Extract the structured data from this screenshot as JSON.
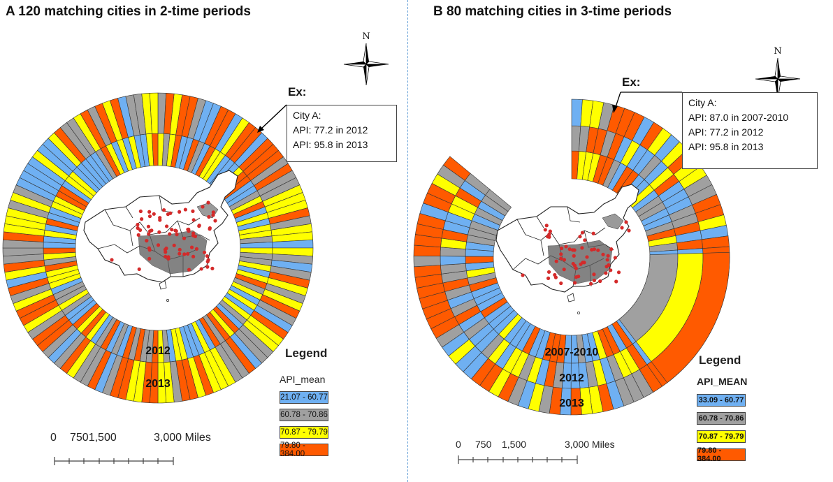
{
  "panel_a": {
    "title": "A 120 matching cities in 2-time periods",
    "ring_labels": [
      "2012",
      "2013"
    ],
    "example": {
      "label": "Ex:",
      "lines": [
        "City A:",
        "API: 77.2 in 2012",
        "API: 95.8 in 2013"
      ]
    },
    "legend": {
      "title": "Legend",
      "field": "API_mean",
      "classes": [
        {
          "range": "21.07 - 60.77",
          "color": "#6fb0f2"
        },
        {
          "range": "60.78 - 70.86",
          "color": "#a0a0a0"
        },
        {
          "range": "70.87 - 79.79",
          "color": "#ffff00"
        },
        {
          "range": "79.80 - 384.00",
          "color": "#ff5a00"
        }
      ]
    },
    "scale": {
      "labels": [
        "0",
        "7501,500",
        "3,000 Miles"
      ]
    },
    "compass": {
      "north": "N"
    }
  },
  "panel_b": {
    "title": "B 80 matching cities in 3-time periods",
    "ring_labels": [
      "2007-2010",
      "2012",
      "2013"
    ],
    "example": {
      "label": "Ex:",
      "lines": [
        "City A:",
        "API: 87.0 in 2007-2010",
        "API: 77.2 in 2012",
        "API: 95.8 in 2013"
      ]
    },
    "legend": {
      "title": "Legend",
      "field": "API_MEAN",
      "classes": [
        {
          "range": "33.09 - 60.77",
          "color": "#6fb0f2"
        },
        {
          "range": "60.78 - 70.86",
          "color": "#a0a0a0"
        },
        {
          "range": "70.87 - 79.79",
          "color": "#ffff00"
        },
        {
          "range": "79.80 - 384.00",
          "color": "#ff5a00"
        }
      ]
    },
    "scale": {
      "labels": [
        "0",
        "750",
        "1,500",
        "3,000 Miles"
      ]
    },
    "compass": {
      "north": "N"
    }
  },
  "colors": {
    "blue": "#6fb0f2",
    "gray": "#a0a0a0",
    "yellow": "#ffff00",
    "orange": "#ff5a00",
    "city_marker": "#d42a2a",
    "divider": "#6aa3d8"
  }
}
